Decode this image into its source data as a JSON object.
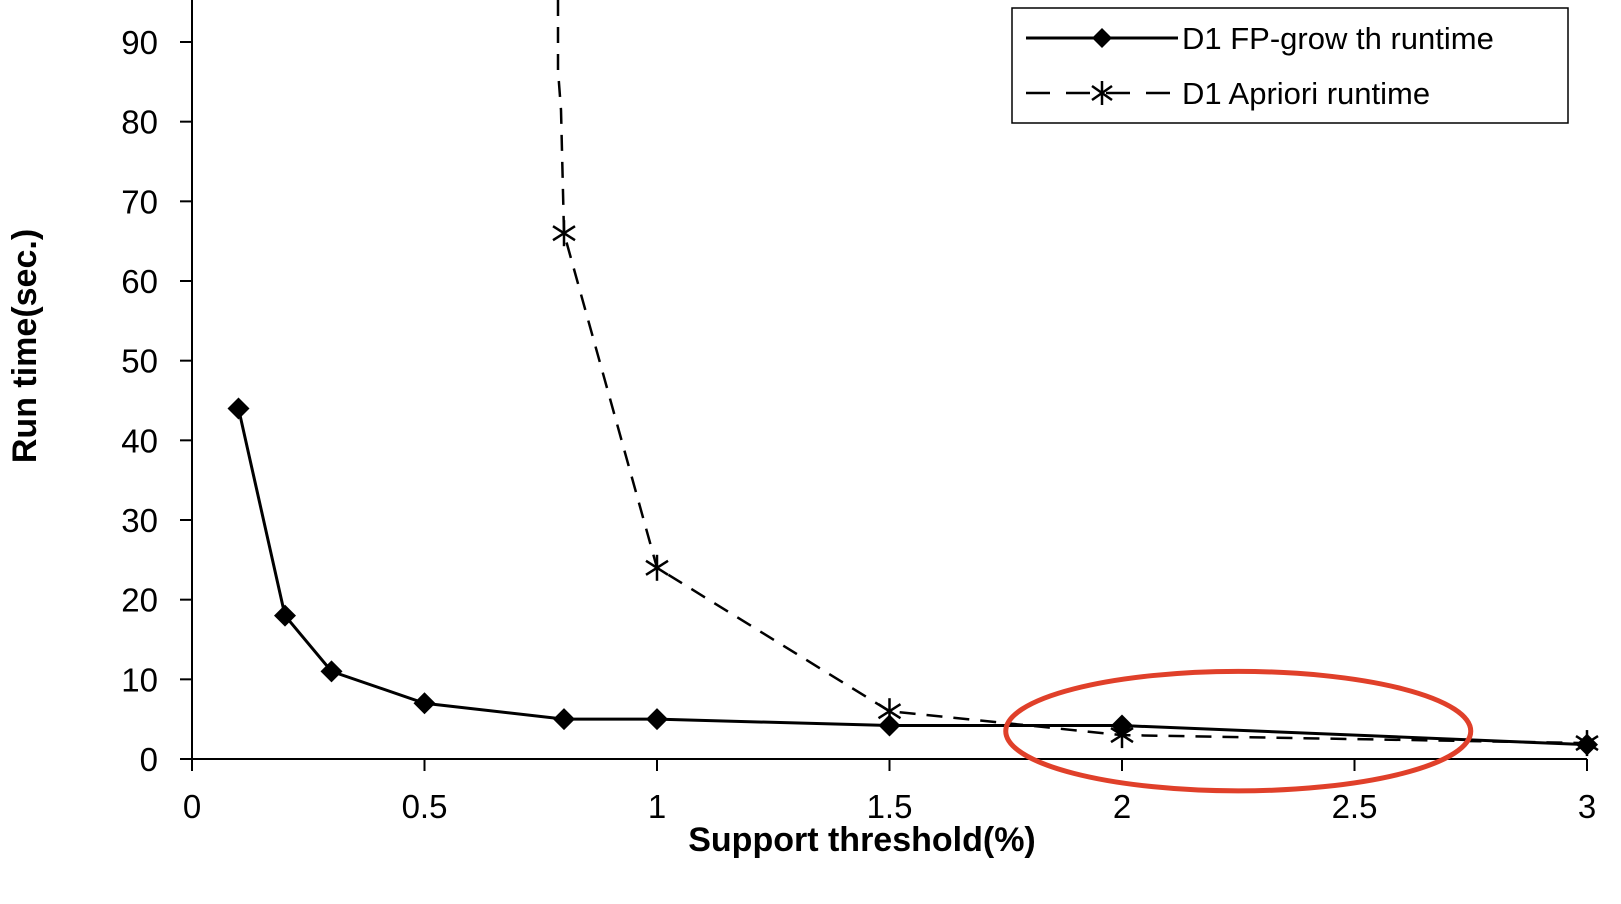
{
  "chart_data": {
    "type": "line",
    "title": "",
    "xlabel": "Support threshold(%)",
    "ylabel": "Run time(sec.)",
    "xlim": [
      0,
      3
    ],
    "ylim": [
      0,
      95
    ],
    "xticks": [
      0,
      0.5,
      1,
      1.5,
      2,
      2.5,
      3
    ],
    "xtick_labels": [
      "0",
      "0.5",
      "1",
      "1.5",
      "2",
      "2.5",
      "3"
    ],
    "yticks": [
      0,
      10,
      20,
      30,
      40,
      50,
      60,
      70,
      80,
      90
    ],
    "ytick_labels": [
      "0",
      "10",
      "20",
      "30",
      "40",
      "50",
      "60",
      "70",
      "80",
      "90"
    ],
    "grid": false,
    "legend_position": "top-right",
    "series": [
      {
        "name": "D1 FP-grow th runtime",
        "marker": "diamond",
        "line_style": "solid",
        "color": "#000000",
        "x": [
          0.1,
          0.2,
          0.3,
          0.5,
          0.8,
          1,
          1.5,
          2,
          3
        ],
        "y": [
          44,
          18,
          11,
          7,
          5,
          5,
          4.2,
          4.2,
          1.8
        ]
      },
      {
        "name": "D1 Apriori runtime",
        "marker": "asterisk",
        "line_style": "dashed",
        "color": "#000000",
        "x": [
          0.8,
          1,
          1.5,
          2,
          3
        ],
        "y": [
          66,
          24,
          6,
          3,
          2
        ],
        "offscale_lead_in": true
      }
    ],
    "annotations": [
      {
        "type": "ellipse",
        "color": "#e0402a",
        "x_range": [
          1.75,
          2.75
        ],
        "y_range": [
          -4,
          11
        ]
      }
    ]
  }
}
